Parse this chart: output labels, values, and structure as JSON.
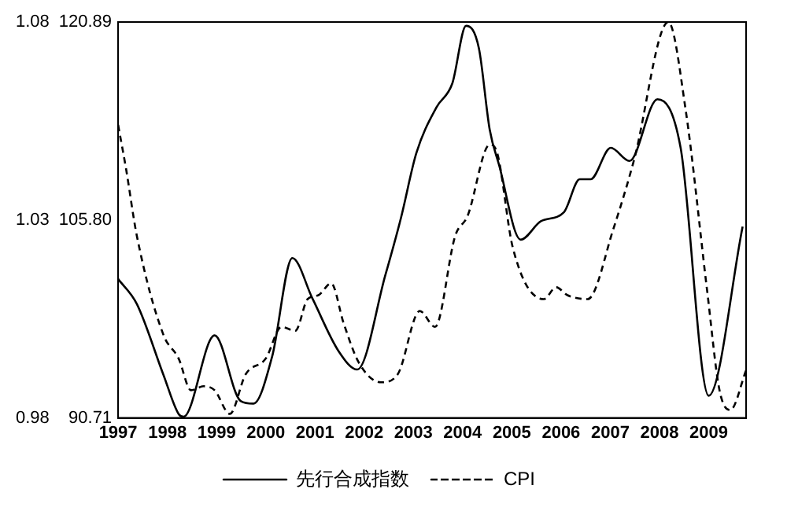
{
  "chart_data": {
    "type": "line",
    "xlim": [
      1997,
      2009.76
    ],
    "xticks": [
      1997,
      1998,
      1999,
      2000,
      2001,
      2002,
      2003,
      2004,
      2005,
      2006,
      2007,
      2008,
      2009
    ],
    "ylim": [
      90.71,
      120.89
    ],
    "yticks": [
      90.71,
      {
        "value": 105.8,
        "label": "105.80"
      },
      120.89
    ],
    "y2lim": [
      0.98,
      1.08
    ],
    "y2ticks": [
      0.98,
      1.03,
      1.08
    ],
    "series": [
      {
        "name": "先行合成指数",
        "color": "#000000",
        "line_style": "solid",
        "x": [
          1997.0,
          1997.38,
          1997.92,
          1998.23,
          1998.33,
          1998.96,
          1999.49,
          1999.75,
          2000.13,
          2000.54,
          2000.95,
          2001.48,
          2001.86,
          2002.43,
          2002.75,
          2003.06,
          2003.47,
          2003.79,
          2004.07,
          2004.33,
          2004.55,
          2004.74,
          2005.18,
          2005.59,
          2006.06,
          2006.38,
          2006.6,
          2007.01,
          2007.39,
          2007.96,
          2008.43,
          2009.0,
          2009.69
        ],
        "values": [
          101.3,
          99.4,
          94.0,
          91.0,
          90.8,
          97.0,
          92.0,
          91.8,
          95.4,
          102.9,
          99.8,
          95.8,
          94.4,
          101.6,
          106.0,
          110.9,
          114.4,
          116.2,
          120.6,
          118.9,
          112.7,
          110.0,
          104.3,
          105.7,
          106.4,
          108.9,
          108.9,
          111.3,
          110.3,
          115.0,
          111.3,
          92.4,
          105.3
        ]
      },
      {
        "name": "CPI",
        "color": "#000000",
        "line_style": "dashed",
        "axis": "y2",
        "x": [
          1997.0,
          1997.16,
          1997.38,
          1997.92,
          1998.23,
          1998.48,
          1998.74,
          1998.96,
          1999.27,
          1999.59,
          2000.0,
          2000.32,
          2000.6,
          2000.85,
          2001.07,
          2001.33,
          2001.58,
          2001.89,
          2002.34,
          2002.68,
          2003.13,
          2003.44,
          2003.85,
          2004.1,
          2004.55,
          2004.7,
          2005.02,
          2005.65,
          2005.9,
          2006.13,
          2006.54,
          2007.07,
          2007.48,
          2008.18,
          2008.53,
          2008.97,
          2009.22,
          2009.44,
          2009.76
        ],
        "values": [
          1.054,
          1.043,
          1.026,
          1.001,
          0.995,
          0.987,
          0.988,
          0.987,
          0.981,
          0.991,
          0.995,
          1.003,
          1.002,
          1.01,
          1.011,
          1.014,
          1.004,
          0.994,
          0.989,
          0.991,
          1.007,
          1.003,
          1.026,
          1.031,
          1.049,
          1.047,
          1.023,
          1.01,
          1.013,
          1.011,
          1.01,
          1.028,
          1.045,
          1.08,
          1.058,
          1.012,
          0.987,
          0.982,
          0.992
        ]
      }
    ],
    "legend": "bottom",
    "grid": false,
    "marker": "none"
  }
}
